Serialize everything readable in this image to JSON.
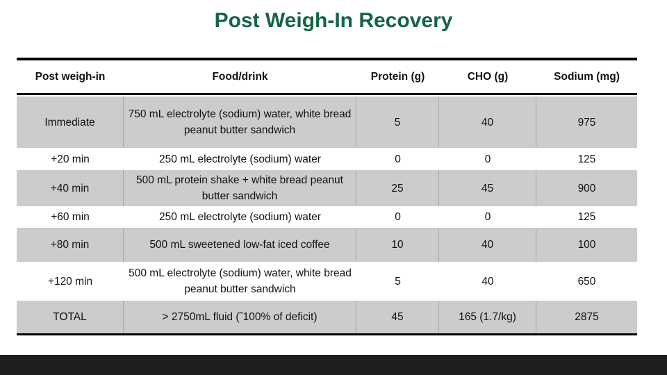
{
  "slide_title": "Post Weigh-In Recovery",
  "colors": {
    "title_green": "#156445",
    "row_shaded": "#cccccc",
    "separator": "#a8a8a8",
    "table_border": "#000000",
    "footer_bar": "#1e1e1e"
  },
  "table": {
    "columns": [
      "Post weigh-in",
      "Food/drink",
      "Protein (g)",
      "CHO (g)",
      "Sodium (mg)"
    ],
    "rows": [
      {
        "time": "Immediate",
        "food": "750 mL electrolyte (sodium) water, white bread peanut butter sandwich",
        "protein": "5",
        "cho": "40",
        "sodium": "975"
      },
      {
        "time": "+20 min",
        "food": "250 mL electrolyte (sodium) water",
        "protein": "0",
        "cho": "0",
        "sodium": "125"
      },
      {
        "time": "+40 min",
        "food": "500 mL protein shake + white bread peanut butter sandwich",
        "protein": "25",
        "cho": "45",
        "sodium": "900"
      },
      {
        "time": "+60 min",
        "food": "250 mL electrolyte (sodium) water",
        "protein": "0",
        "cho": "0",
        "sodium": "125"
      },
      {
        "time": "+80 min",
        "food": "500 mL sweetened low-fat iced coffee",
        "protein": "10",
        "cho": "40",
        "sodium": "100"
      },
      {
        "time": "+120 min",
        "food": "500 mL electrolyte (sodium) water, white bread peanut butter sandwich",
        "protein": "5",
        "cho": "40",
        "sodium": "650"
      },
      {
        "time": "TOTAL",
        "food": "> 2750mL fluid (˜100% of deficit)",
        "protein": "45",
        "cho": "165 (1.7/kg)",
        "sodium": "2875"
      }
    ]
  }
}
